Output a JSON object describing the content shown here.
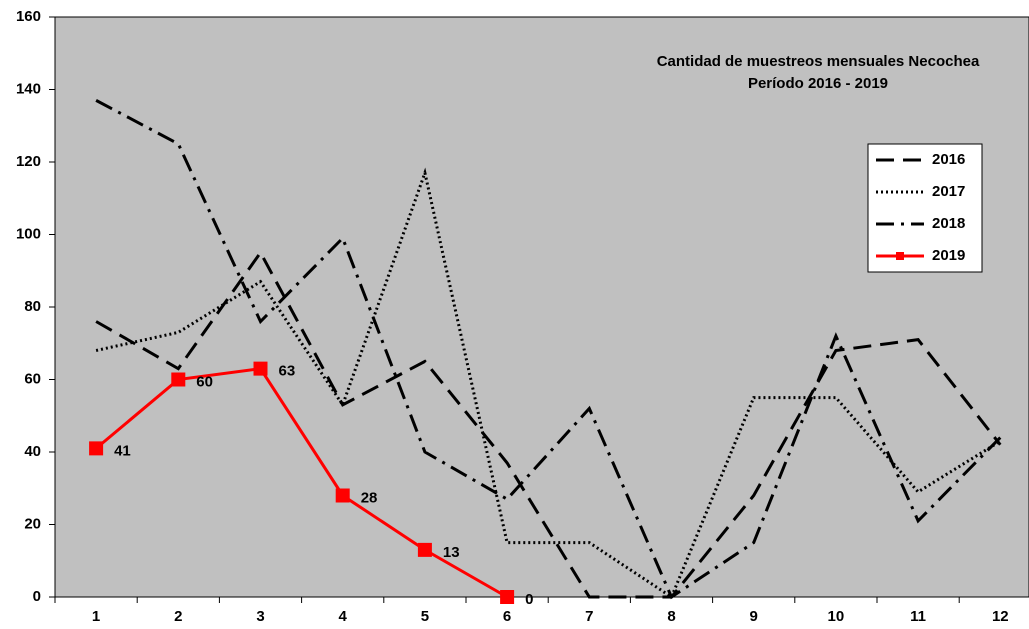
{
  "chart_data": {
    "type": "line",
    "title": "Cantidad de muestreos mensuales Necochea",
    "subtitle": "Período 2016 - 2019",
    "categories": [
      "1",
      "2",
      "3",
      "4",
      "5",
      "6",
      "7",
      "8",
      "9",
      "10",
      "11",
      "12"
    ],
    "series": [
      {
        "name": "2016",
        "color": "#000000",
        "style": "dashed",
        "values": [
          76,
          63,
          95,
          53,
          65,
          37,
          0,
          0,
          28,
          68,
          71,
          42
        ]
      },
      {
        "name": "2017",
        "color": "#000000",
        "style": "dotted",
        "values": [
          68,
          73,
          87,
          53,
          117,
          15,
          15,
          0,
          55,
          55,
          29,
          43
        ]
      },
      {
        "name": "2018",
        "color": "#000000",
        "style": "dashdot",
        "values": [
          137,
          125,
          76,
          99,
          40,
          27,
          52,
          0,
          15,
          72,
          21,
          44
        ]
      },
      {
        "name": "2019",
        "color": "#ff0000",
        "style": "solid",
        "markers": true,
        "data_labels": true,
        "values": [
          41,
          60,
          63,
          28,
          13,
          0,
          null,
          null,
          null,
          null,
          null,
          null
        ]
      }
    ],
    "ylim": [
      0,
      160
    ],
    "yticks": [
      0,
      20,
      40,
      60,
      80,
      100,
      120,
      140,
      160
    ],
    "legend": "right",
    "background": "#c0c0c0"
  }
}
